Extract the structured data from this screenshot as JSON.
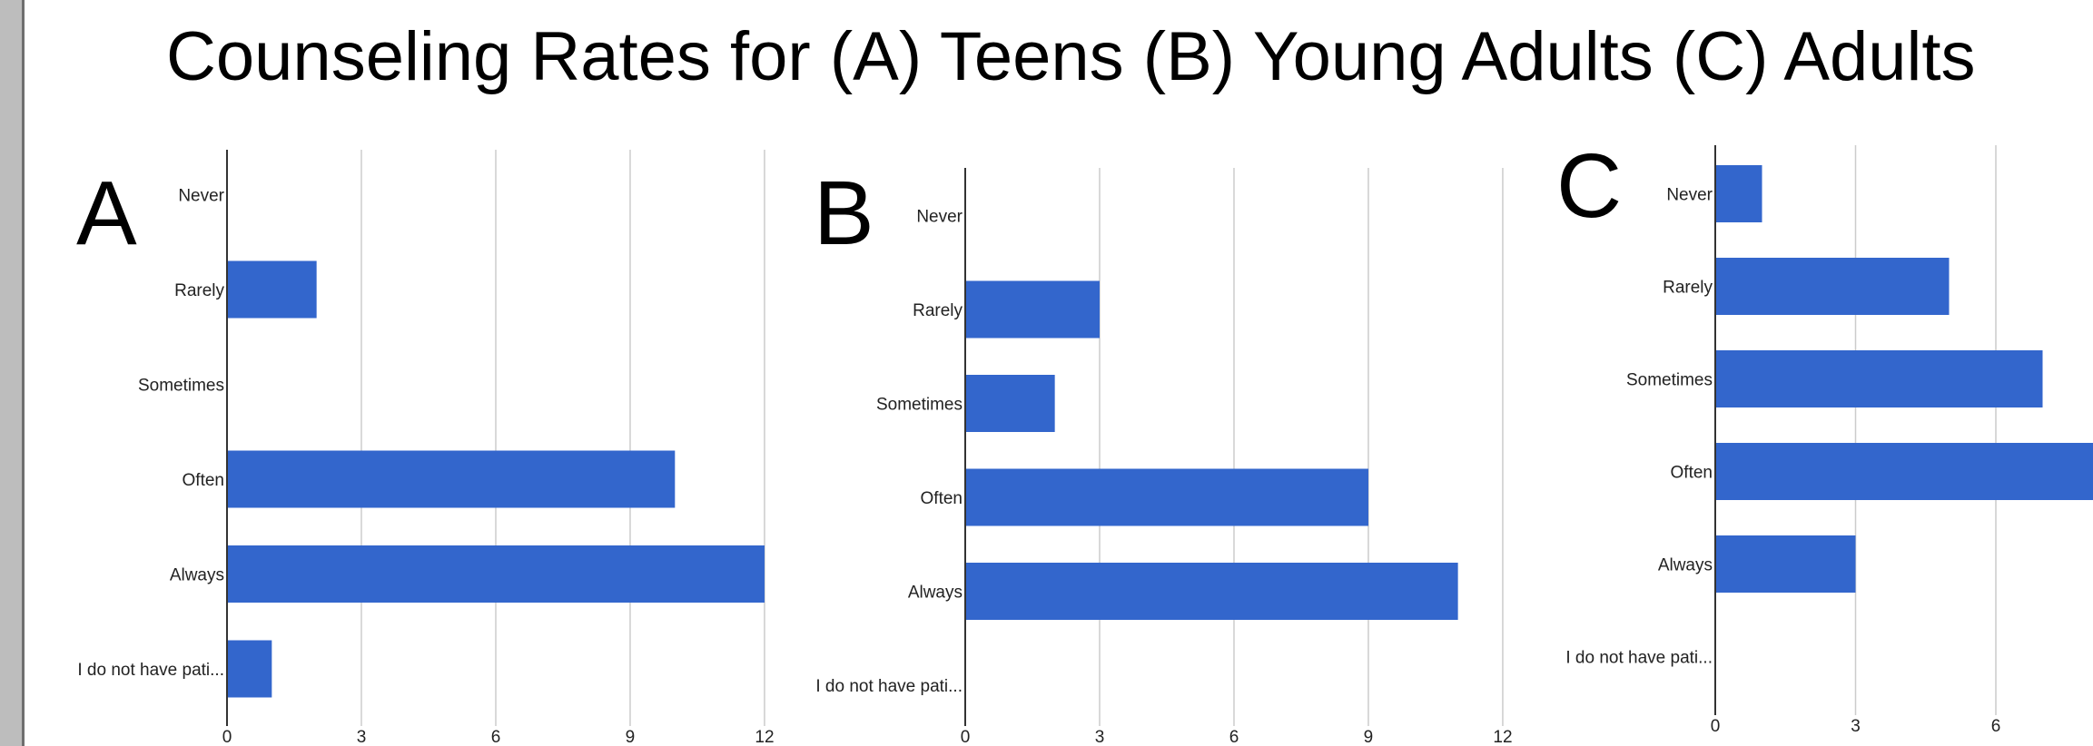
{
  "title": "Counseling Rates for (A) Teens (B) Young Adults (C) Adults",
  "colors": {
    "bar": "#3366cc",
    "grid": "#cccccc",
    "axis": "#333333",
    "text": "#222222",
    "strip": "#bdbdbd"
  },
  "chart_data": [
    {
      "panel": "A",
      "type": "bar",
      "orientation": "horizontal",
      "categories": [
        "Never",
        "Rarely",
        "Sometimes",
        "Often",
        "Always",
        "I do not have pati..."
      ],
      "values": [
        0,
        2,
        0,
        10,
        12,
        1
      ],
      "xlim": [
        0,
        12
      ],
      "xticks": [
        0,
        3,
        6,
        9,
        12
      ],
      "grid": true
    },
    {
      "panel": "B",
      "type": "bar",
      "orientation": "horizontal",
      "categories": [
        "Never",
        "Rarely",
        "Sometimes",
        "Often",
        "Always",
        "I do not have pati..."
      ],
      "values": [
        0,
        3,
        2,
        9,
        11,
        0
      ],
      "xlim": [
        0,
        12
      ],
      "xticks": [
        0,
        3,
        6,
        9,
        12
      ],
      "grid": true
    },
    {
      "panel": "C",
      "type": "bar",
      "orientation": "horizontal",
      "categories": [
        "Never",
        "Rarely",
        "Sometimes",
        "Often",
        "Always",
        "I do not have pati..."
      ],
      "values": [
        1,
        5,
        7,
        9,
        3,
        0
      ],
      "xlim": [
        0,
        9
      ],
      "xticks": [
        0,
        3,
        6
      ],
      "grid": true
    }
  ]
}
